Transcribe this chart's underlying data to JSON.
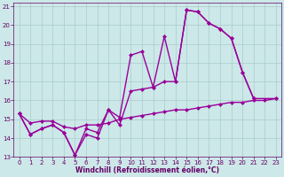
{
  "xlabel": "Windchill (Refroidissement éolien,°C)",
  "background_color": "#cce8e8",
  "grid_color": "#aacccc",
  "line_color": "#990099",
  "xlim": [
    -0.5,
    23.5
  ],
  "ylim": [
    13,
    21.2
  ],
  "xticks": [
    0,
    1,
    2,
    3,
    4,
    5,
    6,
    7,
    8,
    9,
    10,
    11,
    12,
    13,
    14,
    15,
    16,
    17,
    18,
    19,
    20,
    21,
    22,
    23
  ],
  "yticks": [
    13,
    14,
    15,
    16,
    17,
    18,
    19,
    20,
    21
  ],
  "line1_x": [
    0,
    1,
    2,
    3,
    4,
    5,
    6,
    7,
    8,
    9,
    10,
    11,
    12,
    13,
    14,
    15,
    16,
    17,
    18,
    19,
    20,
    21
  ],
  "line1_y": [
    15.3,
    14.2,
    14.5,
    14.7,
    14.3,
    13.1,
    14.2,
    14.0,
    15.5,
    14.7,
    16.5,
    16.6,
    16.7,
    17.0,
    17.0,
    20.8,
    20.7,
    20.1,
    19.8,
    19.3,
    17.5,
    16.1
  ],
  "line2_x": [
    0,
    1,
    2,
    3,
    4,
    5,
    6,
    7,
    8,
    9,
    10,
    11,
    12,
    13,
    14,
    15,
    16,
    17,
    18,
    19,
    20,
    21,
    23
  ],
  "line2_y": [
    15.3,
    14.2,
    14.5,
    14.7,
    14.3,
    13.1,
    14.5,
    14.3,
    15.5,
    15.1,
    18.4,
    18.6,
    16.7,
    19.4,
    17.0,
    20.8,
    20.7,
    20.1,
    19.8,
    19.3,
    17.5,
    16.1,
    16.1
  ],
  "line3_x": [
    0,
    1,
    2,
    3,
    4,
    5,
    6,
    7,
    8,
    9,
    10,
    11,
    12,
    13,
    14,
    15,
    16,
    17,
    18,
    19,
    20,
    21,
    22,
    23
  ],
  "line3_y": [
    15.3,
    14.8,
    14.9,
    14.9,
    14.6,
    14.5,
    14.7,
    14.7,
    14.8,
    15.0,
    15.1,
    15.2,
    15.3,
    15.4,
    15.5,
    15.5,
    15.6,
    15.7,
    15.8,
    15.9,
    15.9,
    16.0,
    16.0,
    16.1
  ],
  "marker_size": 2.5,
  "line_width": 1.0,
  "tick_fontsize": 5.0,
  "xlabel_fontsize": 5.5,
  "tick_color": "#660066"
}
